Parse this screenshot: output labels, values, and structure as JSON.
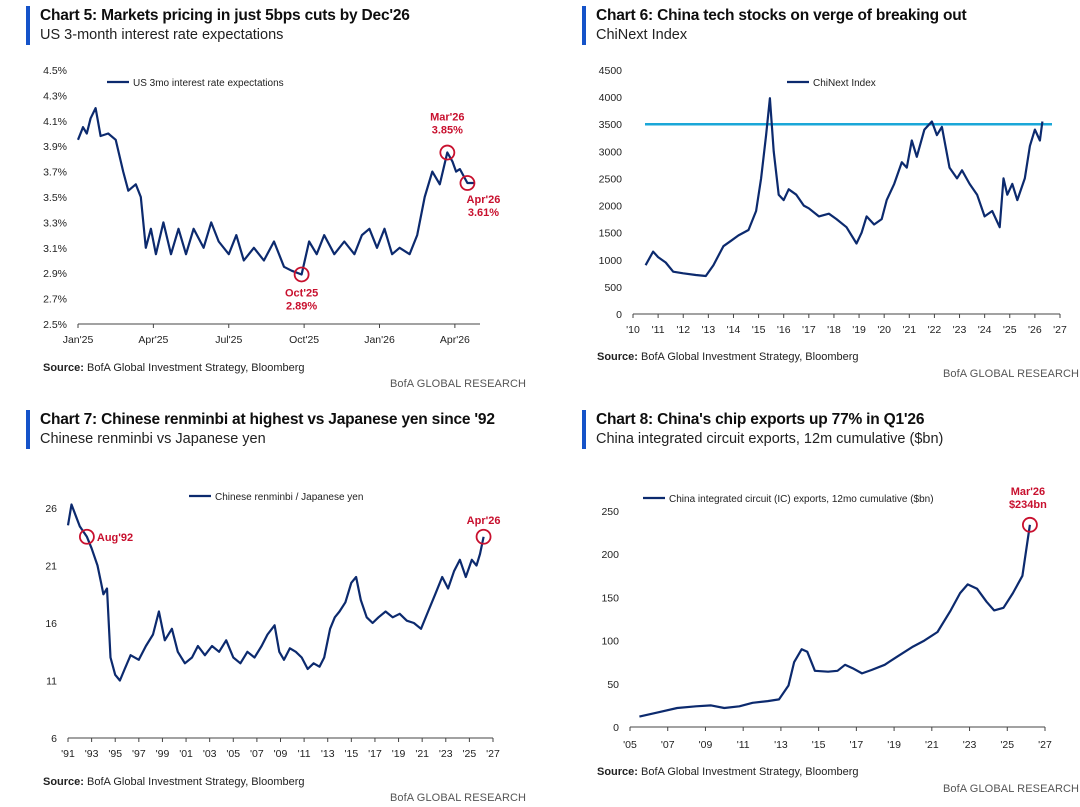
{
  "footer_brand": "BofA GLOBAL RESEARCH",
  "source_label": "Source:",
  "source_text": "BofA Global Investment Strategy, Bloomberg",
  "colors": {
    "line": "#0c2a6e",
    "accent": "#1553c9",
    "annotation": "#c8102e",
    "reference": "#1aa7d8"
  },
  "chart_data": [
    {
      "id": "chart5",
      "type": "line",
      "title": "Chart 5: Markets pricing in just 5bps cuts by Dec'26",
      "subtitle": "US 3-month interest rate expectations",
      "legend": "US 3mo interest rate expectations",
      "ylim": [
        2.5,
        4.5
      ],
      "yticks": [
        "4.5%",
        "4.3%",
        "4.1%",
        "3.9%",
        "3.7%",
        "3.5%",
        "3.3%",
        "3.1%",
        "2.9%",
        "2.7%",
        "2.5%"
      ],
      "xticks": [
        "Jan'25",
        "Apr'25",
        "Jul'25",
        "Oct'25",
        "Jan'26",
        "Apr'26"
      ],
      "series": [
        {
          "name": "US 3mo interest rate expectations",
          "x": [
            0,
            0.2,
            0.35,
            0.5,
            0.7,
            0.9,
            1.2,
            1.5,
            1.8,
            2.0,
            2.3,
            2.5,
            2.7,
            2.9,
            3.1,
            3.4,
            3.7,
            4.0,
            4.3,
            4.6,
            5.0,
            5.3,
            5.6,
            6.0,
            6.3,
            6.6,
            7.0,
            7.4,
            7.8,
            8.2,
            8.5,
            8.9,
            9.2,
            9.5,
            9.8,
            10.2,
            10.6,
            11.0,
            11.3,
            11.6,
            11.9,
            12.2,
            12.5,
            12.8,
            13.2,
            13.5,
            13.8,
            14.1,
            14.4,
            14.7,
            14.9,
            15.05,
            15.2,
            15.5,
            15.8
          ],
          "y": [
            3.95,
            4.05,
            4.0,
            4.12,
            4.2,
            3.98,
            4.0,
            3.95,
            3.7,
            3.55,
            3.6,
            3.5,
            3.1,
            3.25,
            3.05,
            3.3,
            3.05,
            3.25,
            3.05,
            3.25,
            3.1,
            3.3,
            3.15,
            3.05,
            3.2,
            3.0,
            3.1,
            3.0,
            3.15,
            2.95,
            2.92,
            2.89,
            3.15,
            3.05,
            3.2,
            3.05,
            3.15,
            3.05,
            3.2,
            3.25,
            3.1,
            3.25,
            3.05,
            3.1,
            3.05,
            3.2,
            3.5,
            3.7,
            3.6,
            3.85,
            3.78,
            3.7,
            3.72,
            3.61,
            3.61
          ]
        }
      ],
      "annotations": [
        {
          "label": "Mar'26",
          "value": "3.85%",
          "x": 14.7,
          "y": 3.85
        },
        {
          "label": "Apr'26",
          "value": "3.61%",
          "x": 15.5,
          "y": 3.61
        },
        {
          "label": "Oct'25",
          "value": "2.89%",
          "x": 8.9,
          "y": 2.89
        }
      ]
    },
    {
      "id": "chart6",
      "type": "line",
      "title": "Chart 6:  China tech stocks on verge of breaking out",
      "subtitle": "ChiNext Index",
      "legend": "ChiNext Index",
      "ylim": [
        0,
        4500
      ],
      "yticks": [
        "4500",
        "4000",
        "3500",
        "3000",
        "2500",
        "2000",
        "1500",
        "1000",
        "500",
        "0"
      ],
      "xticks": [
        "'10",
        "'11",
        "'12",
        "'13",
        "'14",
        "'15",
        "'16",
        "'17",
        "'18",
        "'19",
        "'20",
        "'21",
        "'22",
        "'23",
        "'24",
        "'25",
        "'26",
        "'27"
      ],
      "reference_level": 3500,
      "series": [
        {
          "name": "ChiNext Index",
          "x": [
            2010.5,
            2010.8,
            2011.0,
            2011.3,
            2011.6,
            2012.0,
            2012.5,
            2012.9,
            2013.2,
            2013.6,
            2013.9,
            2014.2,
            2014.6,
            2014.9,
            2015.1,
            2015.3,
            2015.45,
            2015.6,
            2015.8,
            2016.0,
            2016.2,
            2016.5,
            2016.8,
            2017.0,
            2017.4,
            2017.8,
            2018.1,
            2018.5,
            2018.9,
            2019.1,
            2019.3,
            2019.6,
            2019.9,
            2020.1,
            2020.4,
            2020.7,
            2020.9,
            2021.1,
            2021.3,
            2021.6,
            2021.9,
            2022.1,
            2022.3,
            2022.6,
            2022.9,
            2023.1,
            2023.4,
            2023.7,
            2024.0,
            2024.3,
            2024.6,
            2024.75,
            2024.9,
            2025.1,
            2025.3,
            2025.6,
            2025.8,
            2026.0,
            2026.2,
            2026.3
          ],
          "y": [
            900,
            1150,
            1050,
            950,
            780,
            750,
            720,
            700,
            900,
            1250,
            1350,
            1450,
            1550,
            1900,
            2500,
            3300,
            3980,
            3000,
            2200,
            2100,
            2300,
            2200,
            2000,
            1950,
            1800,
            1850,
            1750,
            1600,
            1300,
            1500,
            1800,
            1650,
            1750,
            2100,
            2400,
            2800,
            2700,
            3200,
            2900,
            3400,
            3550,
            3300,
            3450,
            2700,
            2500,
            2650,
            2400,
            2200,
            1800,
            1900,
            1600,
            2500,
            2200,
            2400,
            2100,
            2500,
            3100,
            3400,
            3200,
            3550
          ]
        }
      ]
    },
    {
      "id": "chart7",
      "type": "line",
      "title": "Chart 7: Chinese renminbi at highest vs Japanese yen since '92",
      "subtitle": "Chinese renminbi vs Japanese yen",
      "legend": "Chinese renminbi / Japanese yen",
      "ylim": [
        6,
        26
      ],
      "yticks": [
        "26",
        "21",
        "16",
        "11",
        "6"
      ],
      "xticks": [
        "'91",
        "'93",
        "'95",
        "'97",
        "'99",
        "'01",
        "'03",
        "'05",
        "'07",
        "'09",
        "'11",
        "'13",
        "'15",
        "'17",
        "'19",
        "'21",
        "'23",
        "'25",
        "'27"
      ],
      "series": [
        {
          "name": "Chinese renminbi / Japanese yen",
          "x": [
            1991.0,
            1991.3,
            1991.7,
            1992.0,
            1992.6,
            1993.0,
            1993.5,
            1993.8,
            1994.0,
            1994.3,
            1994.6,
            1995.0,
            1995.4,
            1995.8,
            1996.3,
            1997.0,
            1997.6,
            1998.2,
            1998.7,
            1999.2,
            1999.8,
            2000.3,
            2000.9,
            2001.5,
            2002.0,
            2002.6,
            2003.2,
            2003.8,
            2004.4,
            2005.0,
            2005.6,
            2006.2,
            2006.8,
            2007.4,
            2007.9,
            2008.5,
            2008.9,
            2009.3,
            2009.8,
            2010.3,
            2010.8,
            2011.3,
            2011.8,
            2012.3,
            2012.7,
            2013.2,
            2013.6,
            2014.0,
            2014.5,
            2015.0,
            2015.4,
            2015.8,
            2016.3,
            2016.8,
            2017.3,
            2017.9,
            2018.5,
            2019.1,
            2019.7,
            2020.3,
            2020.9,
            2021.5,
            2022.1,
            2022.7,
            2023.2,
            2023.7,
            2024.2,
            2024.7,
            2025.2,
            2025.6,
            2025.9,
            2026.2
          ],
          "y": [
            24.5,
            26.3,
            25.2,
            24.4,
            23.5,
            22.5,
            21.0,
            19.5,
            18.5,
            19.0,
            13.0,
            11.5,
            11.0,
            12.0,
            13.2,
            12.8,
            14.0,
            15.0,
            17.0,
            14.5,
            15.5,
            13.5,
            12.5,
            13.0,
            14.0,
            13.2,
            14.0,
            13.5,
            14.5,
            13.0,
            12.5,
            13.5,
            13.0,
            14.0,
            15.0,
            15.8,
            13.5,
            12.8,
            13.8,
            13.5,
            13.0,
            12.0,
            12.5,
            12.2,
            13.0,
            15.5,
            16.5,
            17.0,
            17.8,
            19.5,
            20.0,
            18.0,
            16.5,
            16.0,
            16.5,
            17.0,
            16.5,
            16.8,
            16.2,
            16.0,
            15.5,
            17.0,
            18.5,
            20.0,
            19.0,
            20.5,
            21.5,
            20.0,
            21.5,
            21.0,
            22.0,
            23.5
          ]
        }
      ],
      "annotations": [
        {
          "label": "Aug'92",
          "x": 1992.6,
          "y": 23.5
        },
        {
          "label": "Apr'26",
          "x": 2026.2,
          "y": 23.5
        }
      ]
    },
    {
      "id": "chart8",
      "type": "line",
      "title": "Chart 8: China's chip exports up 77% in Q1'26",
      "subtitle": "China integrated circuit exports, 12m cumulative ($bn)",
      "legend": "China integrated circuit (IC) exports, 12mo cumulative ($bn)",
      "ylim": [
        0,
        250
      ],
      "yticks": [
        "250",
        "200",
        "150",
        "100",
        "50",
        "0"
      ],
      "xticks": [
        "'05",
        "'07",
        "'09",
        "'11",
        "'13",
        "'15",
        "'17",
        "'19",
        "'21",
        "'23",
        "'25",
        "'27"
      ],
      "series": [
        {
          "name": "China integrated circuit (IC) exports, 12mo cumulative ($bn)",
          "x": [
            2005.5,
            2006.5,
            2007.5,
            2008.5,
            2009.3,
            2010.0,
            2010.8,
            2011.5,
            2012.3,
            2012.9,
            2013.4,
            2013.7,
            2014.1,
            2014.4,
            2014.8,
            2015.5,
            2016.0,
            2016.4,
            2016.8,
            2017.3,
            2017.8,
            2018.5,
            2019.2,
            2020.0,
            2020.6,
            2021.3,
            2022.0,
            2022.5,
            2022.9,
            2023.4,
            2023.9,
            2024.3,
            2024.8,
            2025.3,
            2025.8,
            2026.2
          ],
          "y": [
            12,
            17,
            22,
            24,
            25,
            22,
            24,
            28,
            30,
            32,
            48,
            75,
            90,
            87,
            65,
            64,
            65,
            72,
            68,
            62,
            66,
            72,
            82,
            93,
            100,
            110,
            135,
            155,
            165,
            160,
            145,
            135,
            138,
            155,
            175,
            234
          ]
        }
      ],
      "annotations": [
        {
          "label": "Mar'26",
          "value": "$234bn",
          "x": 2026.2,
          "y": 234
        }
      ]
    }
  ]
}
